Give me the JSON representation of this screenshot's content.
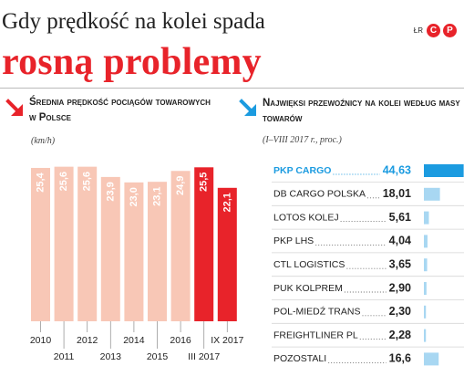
{
  "header": {
    "title_line1": "Gdy prędkość na kolei spada",
    "title_line2": "rosną problemy",
    "source_prefix": "ŁR",
    "logo_letter_left": "C",
    "logo_letter_right": "P"
  },
  "left_panel": {
    "heading": "Średnia prędkość pociągów towarowych w Polsce",
    "unit": "(km/h)"
  },
  "right_panel": {
    "heading": "Najwięksi przewoźnicy na kolei według masy towarów",
    "note": "(I–VIII 2017 r., proc.)"
  },
  "colors": {
    "bar_light": "#f8c7b6",
    "bar_red": "#e8232a",
    "carrier_bar_main": "#1b9be0",
    "carrier_bar_light": "#a8d7f2",
    "highlight_text": "#1b9be0",
    "arrow_left": "#e8232a",
    "arrow_right": "#1b9be0"
  },
  "chart_data": [
    {
      "type": "bar",
      "categories": [
        "2010",
        "2011",
        "2012",
        "2013",
        "2014",
        "2015",
        "2016",
        "III 2017",
        "IX 2017"
      ],
      "values": [
        25.4,
        25.6,
        25.6,
        23.9,
        23.0,
        23.1,
        24.9,
        25.5,
        22.1
      ],
      "value_labels": [
        "25,4",
        "25,6",
        "25,6",
        "23,9",
        "23,0",
        "23,1",
        "24,9",
        "25,5",
        "22,1"
      ],
      "highlighted": [
        false,
        false,
        false,
        false,
        false,
        false,
        false,
        true,
        true
      ],
      "ylim": [
        0,
        26
      ],
      "grid": false,
      "ylabel": "(km/h)"
    },
    {
      "type": "bar",
      "orientation": "horizontal",
      "categories": [
        "PKP CARGO",
        "DB CARGO POLSKA",
        "LOTOS KOLEJ",
        "PKP LHS",
        "CTL LOGISTICS",
        "PUK KOLPREM",
        "POL-MIEDŹ TRANS",
        "FREIGHTLINER PL",
        "POZOSTALI"
      ],
      "values": [
        44.63,
        18.01,
        5.61,
        4.04,
        3.65,
        2.9,
        2.3,
        2.28,
        16.6
      ],
      "value_labels": [
        "44,63",
        "18,01",
        "5,61",
        "4,04",
        "3,65",
        "2,90",
        "2,30",
        "2,28",
        "16,6"
      ],
      "highlighted": [
        true,
        false,
        false,
        false,
        false,
        false,
        false,
        false,
        false
      ],
      "xlim": [
        0,
        45
      ],
      "grid": false
    }
  ]
}
